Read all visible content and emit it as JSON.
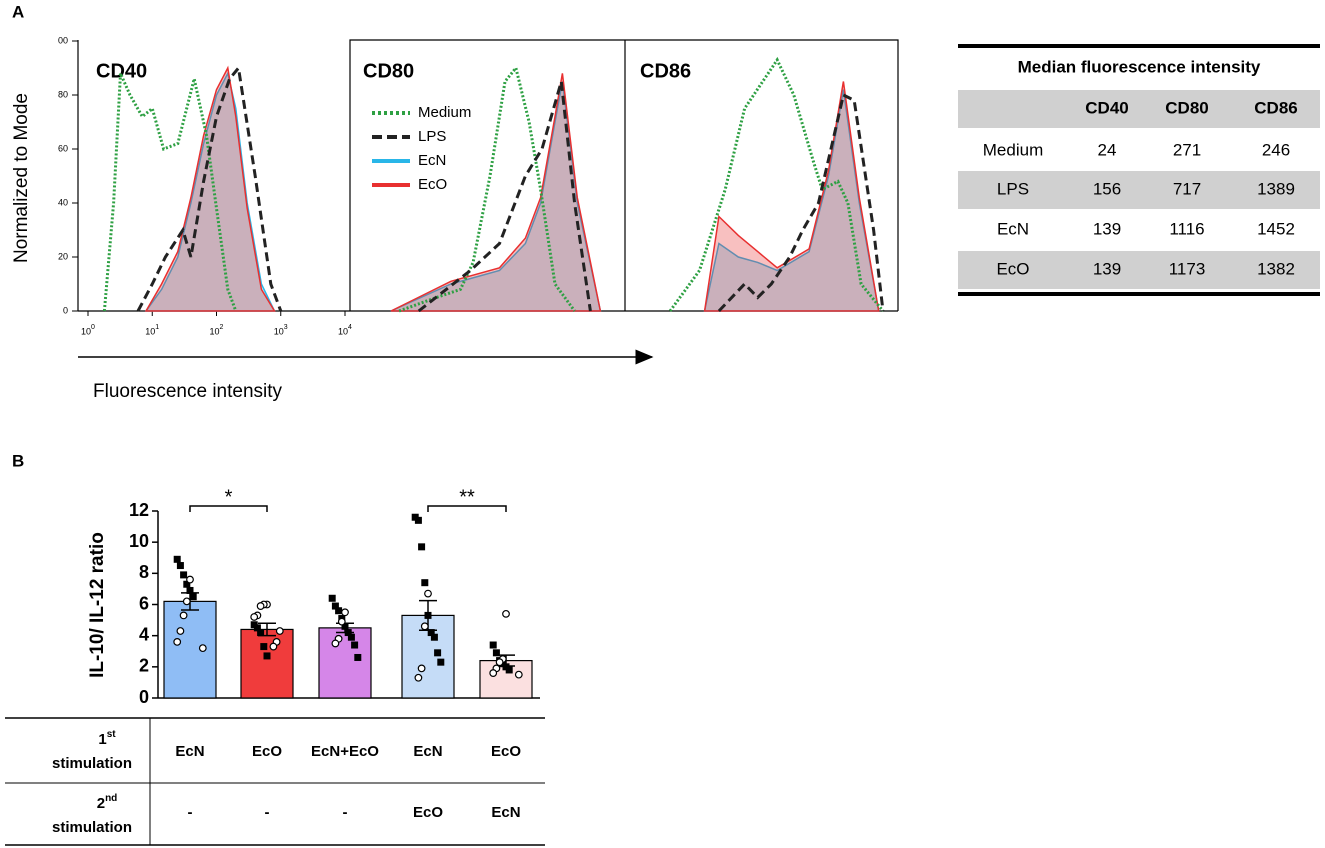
{
  "panel_labels": [
    "A",
    "B"
  ],
  "figure_a": {
    "ylabel": "Normalized to Mode",
    "xlabel": "Fluorescence intensity"
  },
  "chart_data": [
    {
      "type": "line",
      "title": "CD40",
      "xscale": "log",
      "xlim": [
        1,
        10000
      ],
      "ylim": [
        0,
        100
      ],
      "xticks": [
        {
          "value": 1,
          "label": "10",
          "sup": "0"
        },
        {
          "value": 10,
          "label": "10",
          "sup": "1"
        },
        {
          "value": 100,
          "label": "10",
          "sup": "2"
        },
        {
          "value": 1000,
          "label": "10",
          "sup": "3"
        },
        {
          "value": 10000,
          "label": "10",
          "sup": "4"
        }
      ],
      "yticks": [
        0,
        20,
        40,
        60,
        80,
        {
          "value": 100,
          "label": "00"
        }
      ],
      "legend": false,
      "series": [
        {
          "name": "Medium",
          "color": "#2ea043",
          "dash": "dotted",
          "fill": false,
          "x": [
            1.8,
            2.5,
            3.2,
            4.5,
            7,
            10,
            15,
            25,
            45,
            70,
            100,
            150,
            200
          ],
          "values": [
            0,
            40,
            88,
            80,
            72,
            75,
            60,
            62,
            86,
            65,
            38,
            8,
            0
          ]
        },
        {
          "name": "LPS",
          "color": "#222222",
          "dash": "dashed",
          "fill": false,
          "x": [
            6,
            10,
            16,
            30,
            40,
            63,
            100,
            160,
            220,
            400,
            700,
            1000
          ],
          "values": [
            0,
            10,
            20,
            30,
            20,
            48,
            72,
            86,
            90,
            50,
            10,
            0
          ]
        },
        {
          "name": "EcN",
          "color": "#29b6e8",
          "dash": "solid",
          "fill": true,
          "x": [
            8,
            14,
            25,
            40,
            63,
            100,
            150,
            200,
            300,
            500,
            800
          ],
          "values": [
            0,
            8,
            20,
            40,
            62,
            80,
            88,
            75,
            40,
            10,
            0
          ]
        },
        {
          "name": "EcO",
          "color": "#e83030",
          "dash": "solid",
          "fill": true,
          "x": [
            8,
            14,
            25,
            40,
            63,
            100,
            150,
            200,
            300,
            500,
            800
          ],
          "values": [
            0,
            10,
            22,
            42,
            65,
            82,
            90,
            72,
            38,
            8,
            0
          ]
        }
      ]
    },
    {
      "type": "line",
      "title": "CD80",
      "xscale": "log",
      "xlim": [
        1,
        10000
      ],
      "ylim": [
        0,
        100
      ],
      "legend": true,
      "series": [
        {
          "name": "Medium",
          "color": "#2ea043",
          "dash": "dotted",
          "fill": false,
          "x": [
            4,
            15,
            35,
            55,
            100,
            170,
            250,
            400,
            600,
            1000,
            2000
          ],
          "values": [
            0,
            5,
            8,
            18,
            50,
            85,
            90,
            70,
            45,
            10,
            0
          ]
        },
        {
          "name": "LPS",
          "color": "#222222",
          "dash": "dashed",
          "fill": false,
          "x": [
            8,
            50,
            140,
            350,
            630,
            1250,
            2000,
            3500
          ],
          "values": [
            0,
            15,
            25,
            50,
            60,
            85,
            40,
            0
          ]
        },
        {
          "name": "EcN",
          "color": "#29b6e8",
          "dash": "solid",
          "fill": true,
          "x": [
            3,
            25,
            140,
            350,
            600,
            1000,
            1300,
            2200,
            5000
          ],
          "values": [
            0,
            10,
            15,
            25,
            40,
            70,
            85,
            40,
            0
          ]
        },
        {
          "name": "EcO",
          "color": "#e83030",
          "dash": "solid",
          "fill": true,
          "x": [
            3,
            25,
            140,
            350,
            600,
            1000,
            1300,
            2200,
            5000
          ],
          "values": [
            0,
            11,
            16,
            27,
            42,
            72,
            88,
            42,
            0
          ]
        }
      ]
    },
    {
      "type": "line",
      "title": "CD86",
      "xscale": "log",
      "xlim": [
        1,
        10000
      ],
      "ylim": [
        0,
        100
      ],
      "legend": false,
      "series": [
        {
          "name": "Medium",
          "color": "#2ea043",
          "dash": "dotted",
          "fill": false,
          "x": [
            3.5,
            10,
            25,
            50,
            160,
            290,
            590,
            800,
            1400,
            2000,
            3200,
            7000
          ],
          "values": [
            0,
            15,
            45,
            75,
            93,
            80,
            55,
            45,
            48,
            40,
            10,
            0
          ]
        },
        {
          "name": "LPS",
          "color": "#222222",
          "dash": "dashed",
          "fill": false,
          "x": [
            20,
            50,
            80,
            130,
            250,
            400,
            700,
            1700,
            2500,
            5000,
            7000
          ],
          "values": [
            0,
            10,
            5,
            10,
            20,
            30,
            40,
            80,
            78,
            30,
            0
          ]
        },
        {
          "name": "EcN",
          "color": "#29b6e8",
          "dash": "solid",
          "fill": true,
          "x": [
            12,
            20,
            40,
            80,
            160,
            500,
            1000,
            1700,
            3000,
            6000
          ],
          "values": [
            0,
            25,
            20,
            18,
            15,
            22,
            50,
            82,
            40,
            0
          ]
        },
        {
          "name": "EcO",
          "color": "#e83030",
          "dash": "solid",
          "fill": true,
          "x": [
            12,
            20,
            40,
            80,
            160,
            500,
            1000,
            1700,
            3000,
            6000
          ],
          "values": [
            0,
            35,
            28,
            22,
            16,
            23,
            52,
            85,
            42,
            0
          ]
        }
      ]
    },
    {
      "type": "bar",
      "ylabel": "IL-10/ IL-12 ratio",
      "ylim": [
        0,
        12
      ],
      "yticks": [
        0,
        2,
        4,
        6,
        8,
        10,
        12
      ],
      "values": [
        6.2,
        4.4,
        4.5,
        5.3,
        2.4
      ],
      "errors": [
        0.55,
        0.4,
        0.3,
        0.95,
        0.35
      ],
      "colors": [
        "#8fbdf5",
        "#f03c3c",
        "#d586e8",
        "#c5dcf7",
        "#fbe0e0"
      ],
      "points": [
        {
          "squares": [
            8.9,
            8.5,
            7.9,
            7.3,
            6.9,
            6.5
          ],
          "circles": [
            7.6,
            6.2,
            5.3,
            4.3,
            3.6,
            3.2
          ]
        },
        {
          "squares": [
            4.7,
            4.5,
            4.2,
            3.3,
            2.7
          ],
          "circles": [
            6.0,
            6.0,
            5.9,
            5.3,
            5.2,
            4.3,
            3.6,
            3.3
          ]
        },
        {
          "squares": [
            6.4,
            5.9,
            5.6,
            5.1,
            4.6,
            4.2,
            3.9,
            3.4,
            2.6
          ],
          "circles": [
            5.5,
            4.9,
            3.8,
            3.5
          ]
        },
        {
          "squares": [
            11.6,
            11.4,
            9.7,
            7.4,
            5.3,
            4.2,
            3.9,
            2.9,
            2.3
          ],
          "circles": [
            6.7,
            4.6,
            1.9,
            1.3
          ]
        },
        {
          "squares": [
            3.4,
            2.9,
            2.4,
            2.2,
            2.0,
            1.8
          ],
          "circles": [
            5.4,
            2.5,
            2.3,
            1.9,
            1.6,
            1.5
          ]
        }
      ],
      "significance": [
        "*",
        "**"
      ]
    }
  ],
  "mfi_table": {
    "title": "Median fluorescence intensity",
    "header": [
      "CD40",
      "CD80",
      "CD86"
    ],
    "rows": [
      [
        "Medium",
        24,
        271,
        246
      ],
      [
        "LPS",
        156,
        717,
        1389
      ],
      [
        "EcN",
        139,
        1116,
        1452
      ],
      [
        "EcO",
        139,
        1173,
        1382
      ]
    ]
  },
  "stimulation_table": {
    "rows": [
      {
        "label": "1",
        "sup": "st",
        "label2": "stimulation",
        "cells": [
          "EcN",
          "EcO",
          "EcN+EcO",
          "EcN",
          "EcO"
        ]
      },
      {
        "label": "2",
        "sup": "nd",
        "label2": "stimulation",
        "cells": [
          "-",
          "-",
          "-",
          "EcO",
          "EcN"
        ]
      }
    ]
  }
}
